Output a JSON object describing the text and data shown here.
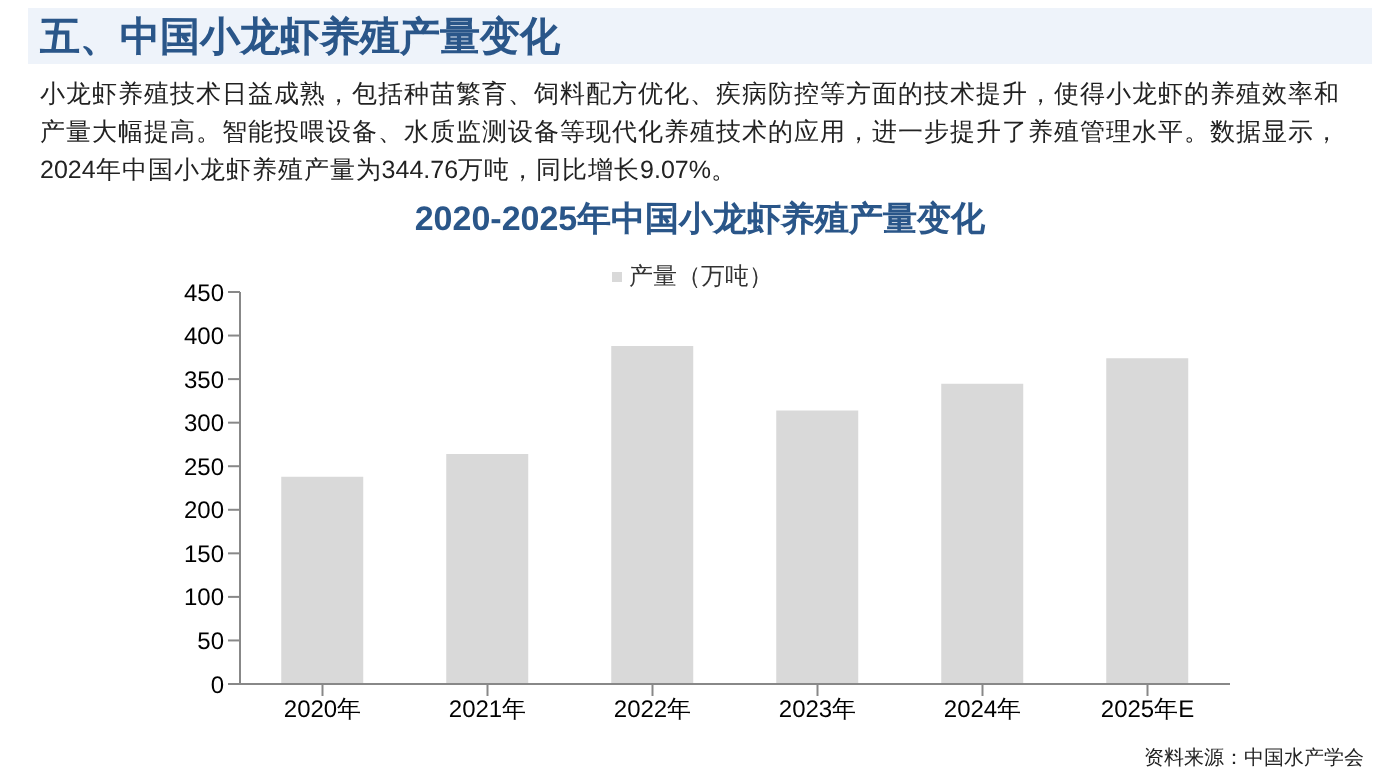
{
  "chart_data": {
    "type": "bar",
    "title": "2020-2025年中国小龙虾养殖产量变化",
    "categories": [
      "2020年",
      "2021年",
      "2022年",
      "2023年",
      "2024年",
      "2025年E"
    ],
    "series": [
      {
        "name": "产量（万吨）",
        "color": "#d9d9d9",
        "values": [
          238,
          264,
          388,
          314,
          344.76,
          374
        ]
      }
    ],
    "ylim": [
      0,
      450
    ],
    "yticks": [
      0,
      50,
      100,
      150,
      200,
      250,
      300,
      350,
      400,
      450
    ],
    "grid": false,
    "legend": "top",
    "annotations": [
      "五、中国小龙虾养殖产量变化",
      "小龙虾养殖技术日益成熟，包括种苗繁育、饲料配方优化、疾病防控等方面的技术提升，使得小龙虾的养殖效率和产量大幅提高。智能投喂设备、水质监测设备等现代化养殖技术的应用，进一步提升了养殖管理水平。数据显示，2024年中国小龙虾养殖产量为344.76万吨，同比增长9.07%。",
      "资料来源：中国水产学会"
    ]
  }
}
